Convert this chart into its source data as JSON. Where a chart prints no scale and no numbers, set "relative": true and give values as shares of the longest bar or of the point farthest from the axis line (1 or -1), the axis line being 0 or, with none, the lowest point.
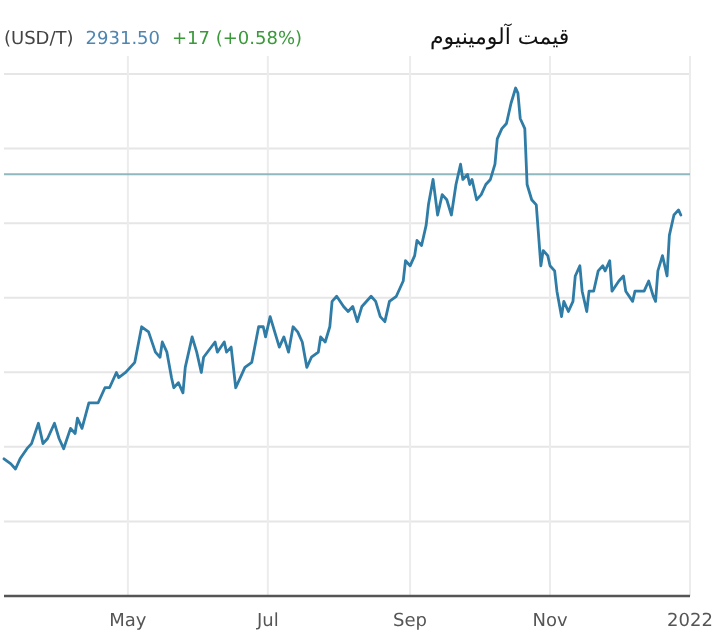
{
  "chart_data": {
    "type": "line",
    "title": "قیمت آلومینیوم",
    "annotations": [
      "(USD/T)",
      "2931.50",
      "+17 (+0.58%)"
    ],
    "relative": true,
    "grid": true,
    "line_style": "solid",
    "xlim": [
      "2021-03-08",
      "2022-01-01"
    ],
    "xticks": [
      {
        "value": "2021-05-01",
        "label": "May"
      },
      {
        "value": "2021-07-01",
        "label": "Jul"
      },
      {
        "value": "2021-09-01",
        "label": "Sep"
      },
      {
        "value": "2021-11-01",
        "label": "Nov"
      },
      {
        "value": "2022-01-01",
        "label": "2022"
      }
    ],
    "ref_lines": [
      {
        "axis": "y",
        "value": 0.83,
        "label": null,
        "color": "#8fb8bf"
      }
    ],
    "x": [
      "2021-03-08",
      "2021-03-11",
      "2021-03-13",
      "2021-03-15",
      "2021-03-18",
      "2021-03-20",
      "2021-03-23",
      "2021-03-25",
      "2021-03-27",
      "2021-03-30",
      "2021-04-01",
      "2021-04-03",
      "2021-04-06",
      "2021-04-08",
      "2021-04-09",
      "2021-04-11",
      "2021-04-14",
      "2021-04-18",
      "2021-04-21",
      "2021-04-23",
      "2021-04-26",
      "2021-04-27",
      "2021-04-30",
      "2021-05-04",
      "2021-05-07",
      "2021-05-10",
      "2021-05-13",
      "2021-05-15",
      "2021-05-16",
      "2021-05-18",
      "2021-05-20",
      "2021-05-21",
      "2021-05-23",
      "2021-05-25",
      "2021-05-26",
      "2021-05-29",
      "2021-05-31",
      "2021-06-02",
      "2021-06-03",
      "2021-06-08",
      "2021-06-09",
      "2021-06-12",
      "2021-06-13",
      "2021-06-15",
      "2021-06-17",
      "2021-06-19",
      "2021-06-21",
      "2021-06-24",
      "2021-06-27",
      "2021-06-29",
      "2021-06-30",
      "2021-07-02",
      "2021-07-04",
      "2021-07-06",
      "2021-07-08",
      "2021-07-10",
      "2021-07-12",
      "2021-07-14",
      "2021-07-16",
      "2021-07-18",
      "2021-07-20",
      "2021-07-23",
      "2021-07-24",
      "2021-07-26",
      "2021-07-28",
      "2021-07-29",
      "2021-07-31",
      "2021-08-03",
      "2021-08-05",
      "2021-08-07",
      "2021-08-09",
      "2021-08-11",
      "2021-08-15",
      "2021-08-17",
      "2021-08-19",
      "2021-08-21",
      "2021-08-23",
      "2021-08-26",
      "2021-08-29",
      "2021-08-30",
      "2021-09-01",
      "2021-09-03",
      "2021-09-04",
      "2021-09-06",
      "2021-09-08",
      "2021-09-09",
      "2021-09-11",
      "2021-09-13",
      "2021-09-15",
      "2021-09-17",
      "2021-09-19",
      "2021-09-21",
      "2021-09-23",
      "2021-09-24",
      "2021-09-26",
      "2021-09-27",
      "2021-09-28",
      "2021-09-30",
      "2021-10-02",
      "2021-10-04",
      "2021-10-06",
      "2021-10-08",
      "2021-10-09",
      "2021-10-11",
      "2021-10-13",
      "2021-10-15",
      "2021-10-17",
      "2021-10-18",
      "2021-10-19",
      "2021-10-21",
      "2021-10-22",
      "2021-10-24",
      "2021-10-26",
      "2021-10-27",
      "2021-10-28",
      "2021-10-29",
      "2021-10-31",
      "2021-11-01",
      "2021-11-03",
      "2021-11-04",
      "2021-11-06",
      "2021-11-07",
      "2021-11-09",
      "2021-11-11",
      "2021-11-12",
      "2021-11-14",
      "2021-11-15",
      "2021-11-17",
      "2021-11-18",
      "2021-11-20",
      "2021-11-22",
      "2021-11-24",
      "2021-11-25",
      "2021-11-27",
      "2021-11-28",
      "2021-12-01",
      "2021-12-03",
      "2021-12-04",
      "2021-12-07",
      "2021-12-08",
      "2021-12-12",
      "2021-12-14",
      "2021-12-16",
      "2021-12-17",
      "2021-12-18",
      "2021-12-20",
      "2021-12-22",
      "2021-12-23",
      "2021-12-25",
      "2021-12-27",
      "2021-12-28"
    ],
    "series": [
      {
        "color": "#2f7ca6",
        "values": [
          0.27,
          0.26,
          0.25,
          0.27,
          0.29,
          0.3,
          0.34,
          0.3,
          0.31,
          0.34,
          0.31,
          0.29,
          0.33,
          0.32,
          0.35,
          0.33,
          0.38,
          0.38,
          0.41,
          0.41,
          0.44,
          0.43,
          0.44,
          0.46,
          0.53,
          0.52,
          0.48,
          0.47,
          0.5,
          0.48,
          0.43,
          0.41,
          0.42,
          0.4,
          0.45,
          0.51,
          0.48,
          0.44,
          0.47,
          0.5,
          0.48,
          0.5,
          0.48,
          0.49,
          0.41,
          0.43,
          0.45,
          0.46,
          0.53,
          0.53,
          0.51,
          0.55,
          0.52,
          0.49,
          0.51,
          0.48,
          0.53,
          0.52,
          0.5,
          0.45,
          0.47,
          0.48,
          0.51,
          0.5,
          0.53,
          0.58,
          0.59,
          0.57,
          0.56,
          0.57,
          0.54,
          0.57,
          0.59,
          0.58,
          0.55,
          0.54,
          0.58,
          0.59,
          0.62,
          0.66,
          0.65,
          0.67,
          0.7,
          0.69,
          0.73,
          0.77,
          0.82,
          0.75,
          0.79,
          0.78,
          0.75,
          0.81,
          0.85,
          0.82,
          0.83,
          0.81,
          0.82,
          0.78,
          0.79,
          0.81,
          0.82,
          0.85,
          0.9,
          0.92,
          0.93,
          0.97,
          1.0,
          0.99,
          0.94,
          0.92,
          0.81,
          0.78,
          0.77,
          0.71,
          0.65,
          0.68,
          0.67,
          0.65,
          0.64,
          0.6,
          0.55,
          0.58,
          0.56,
          0.58,
          0.63,
          0.65,
          0.6,
          0.56,
          0.6,
          0.6,
          0.64,
          0.65,
          0.64,
          0.66,
          0.6,
          0.62,
          0.63,
          0.6,
          0.58,
          0.6,
          0.6,
          0.62,
          0.59,
          0.58,
          0.64,
          0.67,
          0.63,
          0.71,
          0.75,
          0.76,
          0.75
        ]
      }
    ]
  }
}
